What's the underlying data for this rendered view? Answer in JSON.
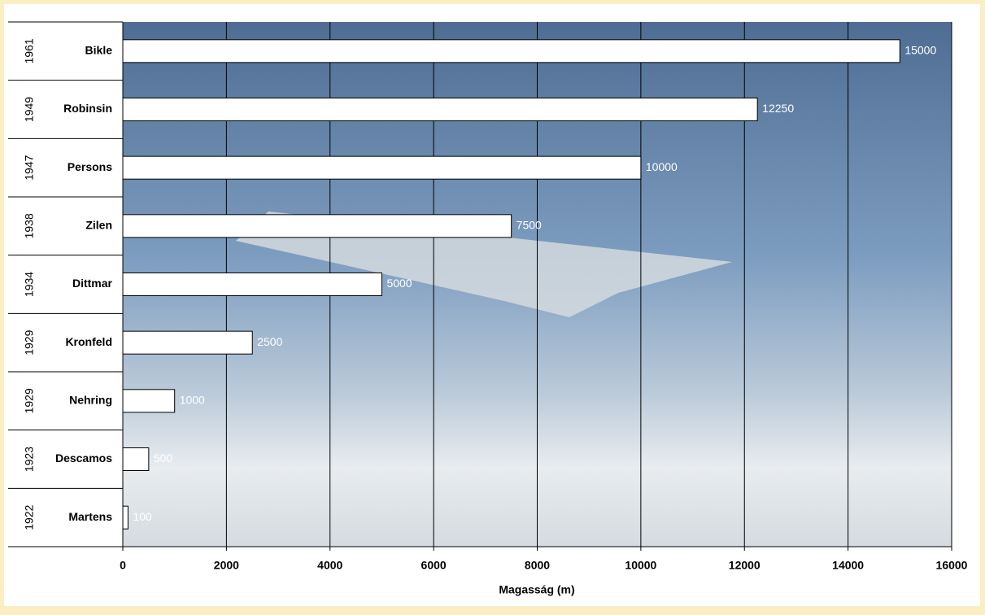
{
  "chart_data": {
    "type": "bar",
    "orientation": "horizontal",
    "groups": [
      "1961",
      "1949",
      "1947",
      "1938",
      "1934",
      "1929",
      "1929",
      "1923",
      "1922"
    ],
    "categories": [
      "Bikle",
      "Robinsin",
      "Persons",
      "Zilen",
      "Dittmar",
      "Kronfeld",
      "Nehring",
      "Descamos",
      "Martens"
    ],
    "values": [
      15000,
      12250,
      10000,
      7500,
      5000,
      2500,
      1000,
      500,
      100
    ],
    "color": "#ffffff",
    "x_label": "Magasság (m)",
    "xlim": [
      0,
      16000
    ],
    "xticks": [
      0,
      2000,
      4000,
      6000,
      8000,
      10000,
      12000,
      14000,
      16000
    ],
    "grid": true
  }
}
